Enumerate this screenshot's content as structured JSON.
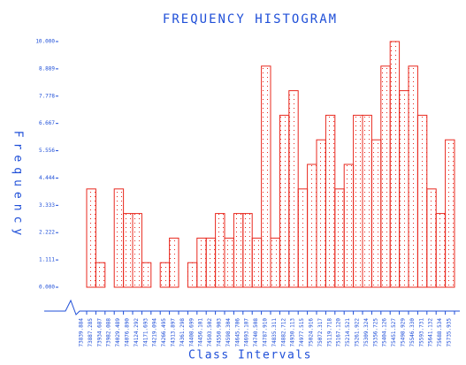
{
  "chart_data": {
    "type": "histogram",
    "title": "FREQUENCY HISTOGRAM",
    "x_label": "Class Intervals",
    "y_label": "Frequency",
    "bins": [
      73839.884,
      73887.285,
      73934.687,
      73982.088,
      74029.489,
      74076.89,
      74124.292,
      74171.693,
      74219.094,
      74266.495,
      74313.897,
      74361.298,
      74408.699,
      74456.101,
      74503.502,
      74550.903,
      74598.304,
      74645.706,
      74693.107,
      74740.508,
      74787.91,
      74835.311,
      74882.712,
      74930.113,
      74977.515,
      75024.916,
      75072.317,
      75119.718,
      75167.12,
      75214.521,
      75261.922,
      75309.324,
      75356.725,
      75404.126,
      75451.527,
      75498.929,
      75546.33,
      75593.731,
      75641.132,
      75688.534,
      75735.935
    ],
    "values": [
      4,
      1,
      0,
      4,
      3,
      3,
      1,
      0,
      1,
      2,
      0,
      1,
      2,
      2,
      3,
      2,
      3,
      3,
      2,
      9,
      2,
      7,
      8,
      4,
      5,
      6,
      7,
      4,
      5,
      7,
      7,
      6,
      9,
      10,
      8,
      9,
      7,
      4,
      3,
      6
    ],
    "color": "#e8281e",
    "xlim": [
      73839.884,
      75735.935
    ],
    "xticks": [
      {
        "value": 73839.884,
        "label": "73839.884"
      },
      {
        "value": 73887.285,
        "label": "73887.285"
      },
      {
        "value": 73934.687,
        "label": "73934.687"
      },
      {
        "value": 73982.088,
        "label": "73982.088"
      },
      {
        "value": 74029.489,
        "label": "74029.489"
      },
      {
        "value": 74076.89,
        "label": "74076.890"
      },
      {
        "value": 74124.292,
        "label": "74124.292"
      },
      {
        "value": 74171.693,
        "label": "74171.693"
      },
      {
        "value": 74219.094,
        "label": "74219.094"
      },
      {
        "value": 74266.495,
        "label": "74266.495"
      },
      {
        "value": 74313.897,
        "label": "74313.897"
      },
      {
        "value": 74361.298,
        "label": "74361.298"
      },
      {
        "value": 74408.699,
        "label": "74408.699"
      },
      {
        "value": 74456.101,
        "label": "74456.101"
      },
      {
        "value": 74503.502,
        "label": "74503.502"
      },
      {
        "value": 74550.903,
        "label": "74550.903"
      },
      {
        "value": 74598.304,
        "label": "74598.304"
      },
      {
        "value": 74645.706,
        "label": "74645.706"
      },
      {
        "value": 74693.107,
        "label": "74693.107"
      },
      {
        "value": 74740.508,
        "label": "74740.508"
      },
      {
        "value": 74787.91,
        "label": "74787.910"
      },
      {
        "value": 74835.311,
        "label": "74835.311"
      },
      {
        "value": 74882.712,
        "label": "74882.712"
      },
      {
        "value": 74930.113,
        "label": "74930.113"
      },
      {
        "value": 74977.515,
        "label": "74977.515"
      },
      {
        "value": 75024.916,
        "label": "75024.916"
      },
      {
        "value": 75072.317,
        "label": "75072.317"
      },
      {
        "value": 75119.718,
        "label": "75119.718"
      },
      {
        "value": 75167.12,
        "label": "75167.120"
      },
      {
        "value": 75214.521,
        "label": "75214.521"
      },
      {
        "value": 75261.922,
        "label": "75261.922"
      },
      {
        "value": 75309.324,
        "label": "75309.324"
      },
      {
        "value": 75356.725,
        "label": "75356.725"
      },
      {
        "value": 75404.126,
        "label": "75404.126"
      },
      {
        "value": 75451.527,
        "label": "75451.527"
      },
      {
        "value": 75498.929,
        "label": "75498.929"
      },
      {
        "value": 75546.33,
        "label": "75546.330"
      },
      {
        "value": 75593.731,
        "label": "75593.731"
      },
      {
        "value": 75641.132,
        "label": "75641.132"
      },
      {
        "value": 75688.534,
        "label": "75688.534"
      },
      {
        "value": 75735.935,
        "label": "75735.935"
      }
    ],
    "ylim": [
      0,
      10
    ],
    "yticks": [
      {
        "value": 0,
        "label": "0.000"
      },
      1.111,
      2.222,
      3.333,
      4.444,
      5.556,
      6.667,
      7.778,
      8.889,
      {
        "value": 10,
        "label": "10.000"
      }
    ],
    "grid": false
  }
}
